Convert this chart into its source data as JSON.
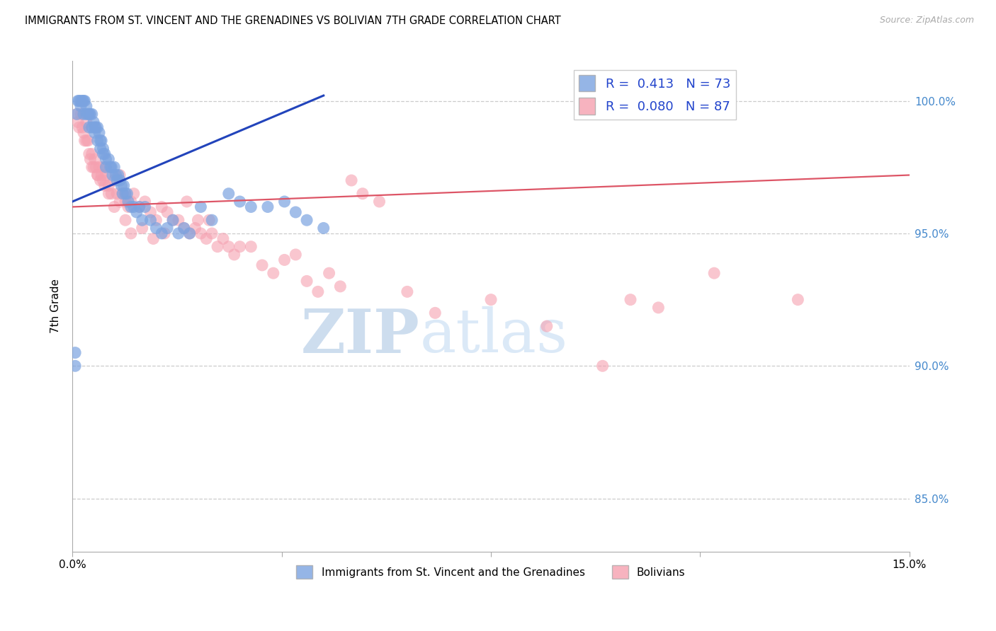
{
  "title": "IMMIGRANTS FROM ST. VINCENT AND THE GRENADINES VS BOLIVIAN 7TH GRADE CORRELATION CHART",
  "source": "Source: ZipAtlas.com",
  "ylabel": "7th Grade",
  "xmin": 0.0,
  "xmax": 15.0,
  "ymin": 83.0,
  "ymax": 101.5,
  "yticks": [
    85.0,
    90.0,
    95.0,
    100.0
  ],
  "blue_R": 0.413,
  "blue_N": 73,
  "pink_R": 0.08,
  "pink_N": 87,
  "blue_color": "#7ba3e0",
  "pink_color": "#f5a0b0",
  "blue_line_color": "#2244bb",
  "pink_line_color": "#dd5566",
  "legend_label_blue": "Immigrants from St. Vincent and the Grenadines",
  "legend_label_pink": "Bolivians",
  "watermark_zip": "ZIP",
  "watermark_atlas": "atlas",
  "blue_line_x0": 0.0,
  "blue_line_y0": 96.2,
  "blue_line_x1": 4.5,
  "blue_line_y1": 100.2,
  "pink_line_x0": 0.0,
  "pink_line_y0": 96.0,
  "pink_line_x1": 15.0,
  "pink_line_y1": 97.2,
  "blue_x": [
    0.05,
    0.08,
    0.1,
    0.12,
    0.15,
    0.15,
    0.18,
    0.2,
    0.2,
    0.22,
    0.25,
    0.25,
    0.28,
    0.3,
    0.3,
    0.32,
    0.35,
    0.35,
    0.38,
    0.4,
    0.4,
    0.42,
    0.45,
    0.45,
    0.48,
    0.5,
    0.5,
    0.52,
    0.55,
    0.55,
    0.58,
    0.6,
    0.6,
    0.65,
    0.68,
    0.7,
    0.72,
    0.75,
    0.78,
    0.8,
    0.82,
    0.85,
    0.88,
    0.9,
    0.92,
    0.95,
    0.98,
    1.0,
    1.05,
    1.1,
    1.15,
    1.2,
    1.25,
    1.3,
    1.4,
    1.5,
    1.6,
    1.7,
    1.8,
    1.9,
    2.0,
    2.1,
    2.3,
    2.5,
    2.8,
    3.0,
    3.2,
    3.5,
    3.8,
    4.0,
    4.2,
    4.5,
    0.05
  ],
  "blue_y": [
    90.5,
    99.5,
    100.0,
    100.0,
    100.0,
    99.8,
    100.0,
    100.0,
    99.5,
    100.0,
    99.8,
    99.5,
    99.5,
    99.0,
    99.5,
    99.5,
    99.5,
    99.0,
    99.2,
    99.0,
    98.8,
    99.0,
    99.0,
    98.5,
    98.8,
    98.5,
    98.2,
    98.5,
    98.2,
    98.0,
    98.0,
    97.8,
    97.5,
    97.8,
    97.5,
    97.5,
    97.2,
    97.5,
    97.2,
    97.0,
    97.2,
    97.0,
    96.8,
    96.5,
    96.8,
    96.5,
    96.5,
    96.2,
    96.0,
    96.0,
    95.8,
    96.0,
    95.5,
    96.0,
    95.5,
    95.2,
    95.0,
    95.2,
    95.5,
    95.0,
    95.2,
    95.0,
    96.0,
    95.5,
    96.5,
    96.2,
    96.0,
    96.0,
    96.2,
    95.8,
    95.5,
    95.2,
    90.0
  ],
  "pink_x": [
    0.08,
    0.1,
    0.12,
    0.15,
    0.18,
    0.2,
    0.22,
    0.25,
    0.28,
    0.3,
    0.32,
    0.35,
    0.38,
    0.4,
    0.42,
    0.45,
    0.48,
    0.5,
    0.52,
    0.55,
    0.58,
    0.6,
    0.65,
    0.7,
    0.75,
    0.8,
    0.85,
    0.9,
    0.95,
    1.0,
    1.05,
    1.1,
    1.2,
    1.3,
    1.4,
    1.5,
    1.6,
    1.7,
    1.8,
    1.9,
    2.0,
    2.1,
    2.2,
    2.3,
    2.4,
    2.5,
    2.6,
    2.7,
    2.8,
    2.9,
    3.0,
    3.2,
    3.4,
    3.6,
    3.8,
    4.0,
    4.2,
    4.4,
    4.6,
    4.8,
    5.0,
    5.2,
    5.5,
    6.0,
    6.5,
    7.5,
    8.5,
    9.5,
    10.0,
    10.5,
    11.5,
    13.0,
    0.25,
    0.35,
    0.45,
    0.55,
    0.65,
    0.75,
    0.85,
    0.95,
    1.05,
    1.25,
    1.45,
    1.65,
    2.05,
    2.25,
    2.45
  ],
  "pink_y": [
    99.5,
    99.2,
    99.0,
    99.5,
    99.0,
    98.8,
    98.5,
    99.2,
    98.5,
    98.0,
    97.8,
    98.0,
    97.5,
    97.8,
    97.5,
    97.2,
    97.5,
    97.0,
    97.2,
    97.0,
    96.8,
    97.2,
    96.8,
    96.5,
    97.0,
    96.5,
    96.2,
    96.5,
    96.2,
    96.0,
    96.2,
    96.5,
    96.0,
    96.2,
    95.8,
    95.5,
    96.0,
    95.8,
    95.5,
    95.5,
    95.2,
    95.0,
    95.2,
    95.0,
    94.8,
    95.0,
    94.5,
    94.8,
    94.5,
    94.2,
    94.5,
    94.5,
    93.8,
    93.5,
    94.0,
    94.2,
    93.2,
    92.8,
    93.5,
    93.0,
    97.0,
    96.5,
    96.2,
    92.8,
    92.0,
    92.5,
    91.5,
    90.0,
    92.5,
    92.2,
    93.5,
    92.5,
    98.5,
    97.5,
    97.2,
    97.5,
    96.5,
    96.0,
    97.2,
    95.5,
    95.0,
    95.2,
    94.8,
    95.0,
    96.2,
    95.5,
    95.5
  ]
}
